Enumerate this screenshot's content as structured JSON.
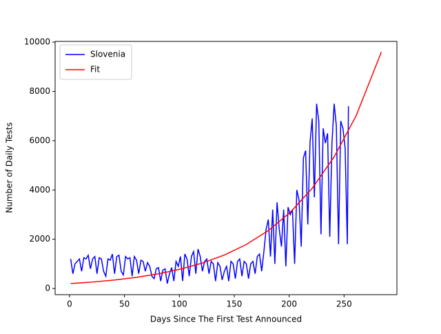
{
  "chart_data": {
    "type": "line",
    "xlabel": "Days Since The First Test Announced",
    "ylabel": "Number of Daily Tests",
    "xlim": [
      -13.15,
      298.15
    ],
    "xticks": [
      0,
      50,
      100,
      150,
      200,
      250
    ],
    "ylim": [
      -250,
      10030
    ],
    "yticks": [
      0,
      2000,
      4000,
      6000,
      8000,
      10000
    ],
    "grid": false,
    "legend": "upper left",
    "series": [
      {
        "name": "Slovenia",
        "color": "#0000ff",
        "x": [
          1,
          3,
          5,
          7,
          9,
          11,
          13,
          15,
          17,
          19,
          21,
          23,
          25,
          27,
          29,
          31,
          33,
          35,
          37,
          39,
          41,
          43,
          45,
          47,
          49,
          51,
          53,
          55,
          57,
          59,
          61,
          63,
          65,
          67,
          69,
          71,
          73,
          75,
          77,
          79,
          81,
          83,
          85,
          87,
          89,
          91,
          93,
          95,
          97,
          99,
          101,
          103,
          105,
          107,
          109,
          111,
          113,
          115,
          117,
          119,
          121,
          123,
          125,
          127,
          129,
          131,
          133,
          135,
          137,
          139,
          141,
          143,
          145,
          147,
          149,
          151,
          153,
          155,
          157,
          159,
          161,
          163,
          165,
          167,
          169,
          171,
          173,
          175,
          177,
          179,
          181,
          183,
          185,
          187,
          189,
          191,
          193,
          195,
          197,
          199,
          201,
          203,
          205,
          207,
          209,
          211,
          213,
          215,
          217,
          219,
          221,
          223,
          225,
          227,
          229,
          231,
          233,
          235,
          237,
          239,
          241,
          243,
          245,
          247,
          249,
          251,
          253,
          254
        ],
        "values": [
          1200,
          600,
          1000,
          1100,
          1200,
          700,
          1250,
          1200,
          1350,
          800,
          1200,
          1300,
          600,
          1250,
          1200,
          700,
          500,
          1200,
          1150,
          1400,
          600,
          1300,
          1350,
          700,
          550,
          1300,
          1200,
          1250,
          500,
          1300,
          1150,
          600,
          1150,
          1100,
          700,
          1050,
          900,
          500,
          400,
          800,
          850,
          300,
          750,
          800,
          200,
          600,
          850,
          300,
          1100,
          900,
          1300,
          300,
          1400,
          1200,
          500,
          1300,
          1500,
          600,
          1600,
          1300,
          700,
          1100,
          1200,
          600,
          1100,
          1000,
          300,
          1050,
          900,
          350,
          700,
          900,
          300,
          1100,
          1000,
          400,
          1100,
          1200,
          500,
          1100,
          1000,
          400,
          1000,
          1100,
          600,
          1300,
          1400,
          700,
          1500,
          2400,
          2800,
          1300,
          3200,
          1000,
          3500,
          2400,
          1700,
          3200,
          900,
          3300,
          3000,
          3200,
          1000,
          4000,
          3600,
          1700,
          5300,
          5600,
          2600,
          5900,
          6900,
          3700,
          7500,
          6800,
          2200,
          6500,
          5900,
          6300,
          2100,
          5900,
          7500,
          6600,
          1800,
          6800,
          6500,
          5700,
          1800,
          7400
        ]
      },
      {
        "name": "Fit",
        "color": "#ff0000",
        "x": [
          1,
          21,
          41,
          61,
          81,
          101,
          121,
          141,
          161,
          181,
          201,
          221,
          241,
          261,
          284
        ],
        "values": [
          200,
          263,
          346,
          455,
          598,
          786,
          1034,
          1360,
          1788,
          2351,
          3092,
          4066,
          5347,
          7010,
          9600
        ]
      }
    ]
  }
}
